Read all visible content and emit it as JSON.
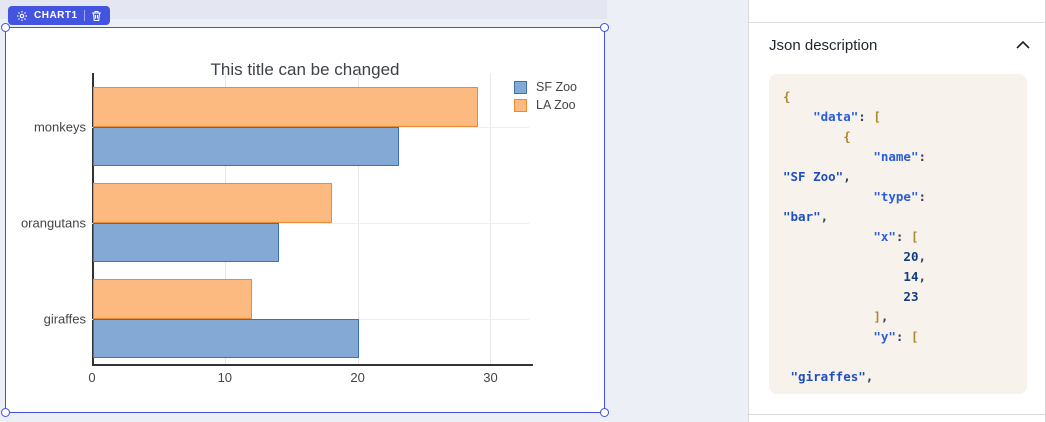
{
  "canvas": {
    "badge": {
      "label": "CHART1",
      "left_icon": "gear-icon",
      "right_icon": "trash-icon",
      "color": "#4355e0"
    },
    "selection_color": "#3f51e0"
  },
  "chart_data": {
    "type": "bar",
    "orientation": "horizontal",
    "title": "This title can be changed",
    "categories": [
      "giraffes",
      "orangutans",
      "monkeys"
    ],
    "series": [
      {
        "name": "SF Zoo",
        "values": [
          20,
          14,
          23
        ],
        "fill": "#83a9d4",
        "border": "#3a72b5"
      },
      {
        "name": "LA Zoo",
        "values": [
          12,
          18,
          29
        ],
        "fill": "#fcba80",
        "border": "#ef8a33"
      }
    ],
    "x_ticks": [
      0,
      10,
      20,
      30
    ],
    "xlim": [
      0,
      32.9
    ],
    "grid": "vertical-and-category",
    "legend_position": "top-right",
    "note_display_order_top_to_bottom": [
      "monkeys",
      "orangutans",
      "giraffes"
    ]
  },
  "panel": {
    "header": "Json description",
    "collapse_icon": "chevron-up-icon",
    "code": {
      "lines": [
        [
          {
            "t": "{",
            "c": "p"
          }
        ],
        [
          {
            "t": "    ",
            "c": "d"
          },
          {
            "t": "\"data\"",
            "c": "k"
          },
          {
            "t": ":",
            "c": "d"
          },
          {
            "t": " ",
            "c": "d"
          },
          {
            "t": "[",
            "c": "p"
          }
        ],
        [
          {
            "t": "        ",
            "c": "d"
          },
          {
            "t": "{",
            "c": "p"
          }
        ],
        [
          {
            "t": "            ",
            "c": "d"
          },
          {
            "t": "\"name\"",
            "c": "k"
          },
          {
            "t": ":",
            "c": "d"
          }
        ],
        [
          {
            "t": "\"SF Zoo\"",
            "c": "s"
          },
          {
            "t": ",",
            "c": "d"
          }
        ],
        [
          {
            "t": "            ",
            "c": "d"
          },
          {
            "t": "\"type\"",
            "c": "k"
          },
          {
            "t": ":",
            "c": "d"
          }
        ],
        [
          {
            "t": "\"bar\"",
            "c": "s"
          },
          {
            "t": ",",
            "c": "d"
          }
        ],
        [
          {
            "t": "            ",
            "c": "d"
          },
          {
            "t": "\"x\"",
            "c": "k"
          },
          {
            "t": ":",
            "c": "d"
          },
          {
            "t": " ",
            "c": "d"
          },
          {
            "t": "[",
            "c": "p"
          }
        ],
        [
          {
            "t": "                ",
            "c": "d"
          },
          {
            "t": "20",
            "c": "n"
          },
          {
            "t": ",",
            "c": "d"
          }
        ],
        [
          {
            "t": "                ",
            "c": "d"
          },
          {
            "t": "14",
            "c": "n"
          },
          {
            "t": ",",
            "c": "d"
          }
        ],
        [
          {
            "t": "                ",
            "c": "d"
          },
          {
            "t": "23",
            "c": "n"
          }
        ],
        [
          {
            "t": "            ",
            "c": "d"
          },
          {
            "t": "]",
            "c": "p"
          },
          {
            "t": ",",
            "c": "d"
          }
        ],
        [
          {
            "t": "            ",
            "c": "d"
          },
          {
            "t": "\"y\"",
            "c": "k"
          },
          {
            "t": ":",
            "c": "d"
          },
          {
            "t": " ",
            "c": "d"
          },
          {
            "t": "[",
            "c": "p"
          }
        ],
        [
          {
            "t": "",
            "c": "d"
          }
        ],
        [
          {
            "t": " ",
            "c": "d"
          },
          {
            "t": "\"giraffes\"",
            "c": "s"
          },
          {
            "t": ",",
            "c": "d"
          }
        ]
      ]
    }
  }
}
